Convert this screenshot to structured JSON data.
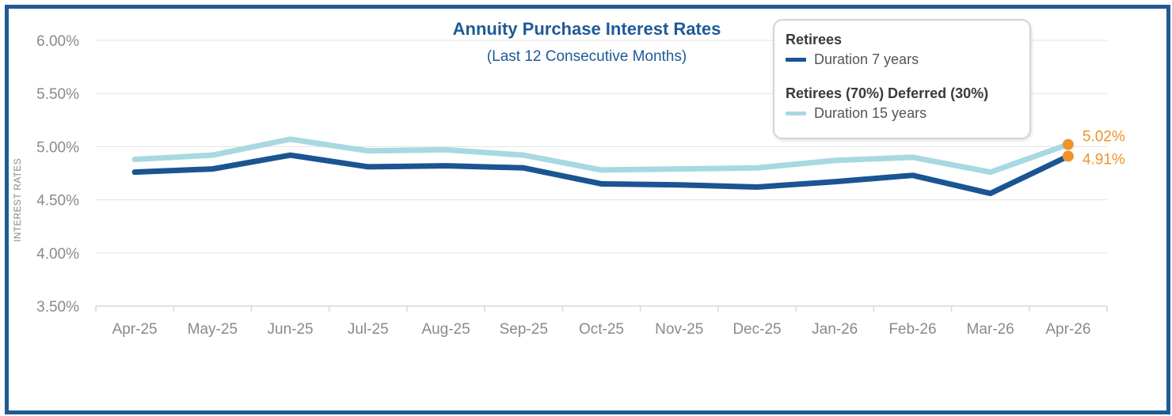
{
  "chart_data": {
    "type": "line",
    "title": "Annuity Purchase Interest Rates",
    "subtitle": "(Last 12 Consecutive Months)",
    "ylabel": "INTEREST RATES",
    "xlabel": "",
    "ylim": [
      3.5,
      6.0
    ],
    "yticks": [
      "3.50%",
      "4.00%",
      "4.50%",
      "5.00%",
      "5.50%",
      "6.00%"
    ],
    "ytick_values": [
      3.5,
      4.0,
      4.5,
      5.0,
      5.5,
      6.0
    ],
    "grid": true,
    "categories": [
      "Apr-25",
      "May-25",
      "Jun-25",
      "Jul-25",
      "Aug-25",
      "Sep-25",
      "Oct-25",
      "Nov-25",
      "Dec-25",
      "Jan-26",
      "Feb-26",
      "Mar-26",
      "Apr-26"
    ],
    "series": [
      {
        "name": "Duration 15 years",
        "group": "Retirees (70%) Deferred (30%)",
        "color": "#a8d8e2",
        "values": [
          4.88,
          4.92,
          5.07,
          4.96,
          4.97,
          4.92,
          4.78,
          4.79,
          4.8,
          4.87,
          4.9,
          4.76,
          5.02
        ]
      },
      {
        "name": "Duration 7 years",
        "group": "Retirees",
        "color": "#1a5592",
        "values": [
          4.76,
          4.79,
          4.92,
          4.81,
          4.82,
          4.8,
          4.65,
          4.64,
          4.62,
          4.67,
          4.73,
          4.56,
          4.91
        ]
      }
    ],
    "end_labels": [
      "5.02%",
      "4.91%"
    ],
    "end_marker_color": "#f0922a",
    "legend_position": "top-right"
  },
  "legend": {
    "group1_title": "Retirees",
    "group1_item": "Duration 7 years",
    "group2_title": "Retirees (70%) Deferred (30%)",
    "group2_item": "Duration 15 years"
  }
}
